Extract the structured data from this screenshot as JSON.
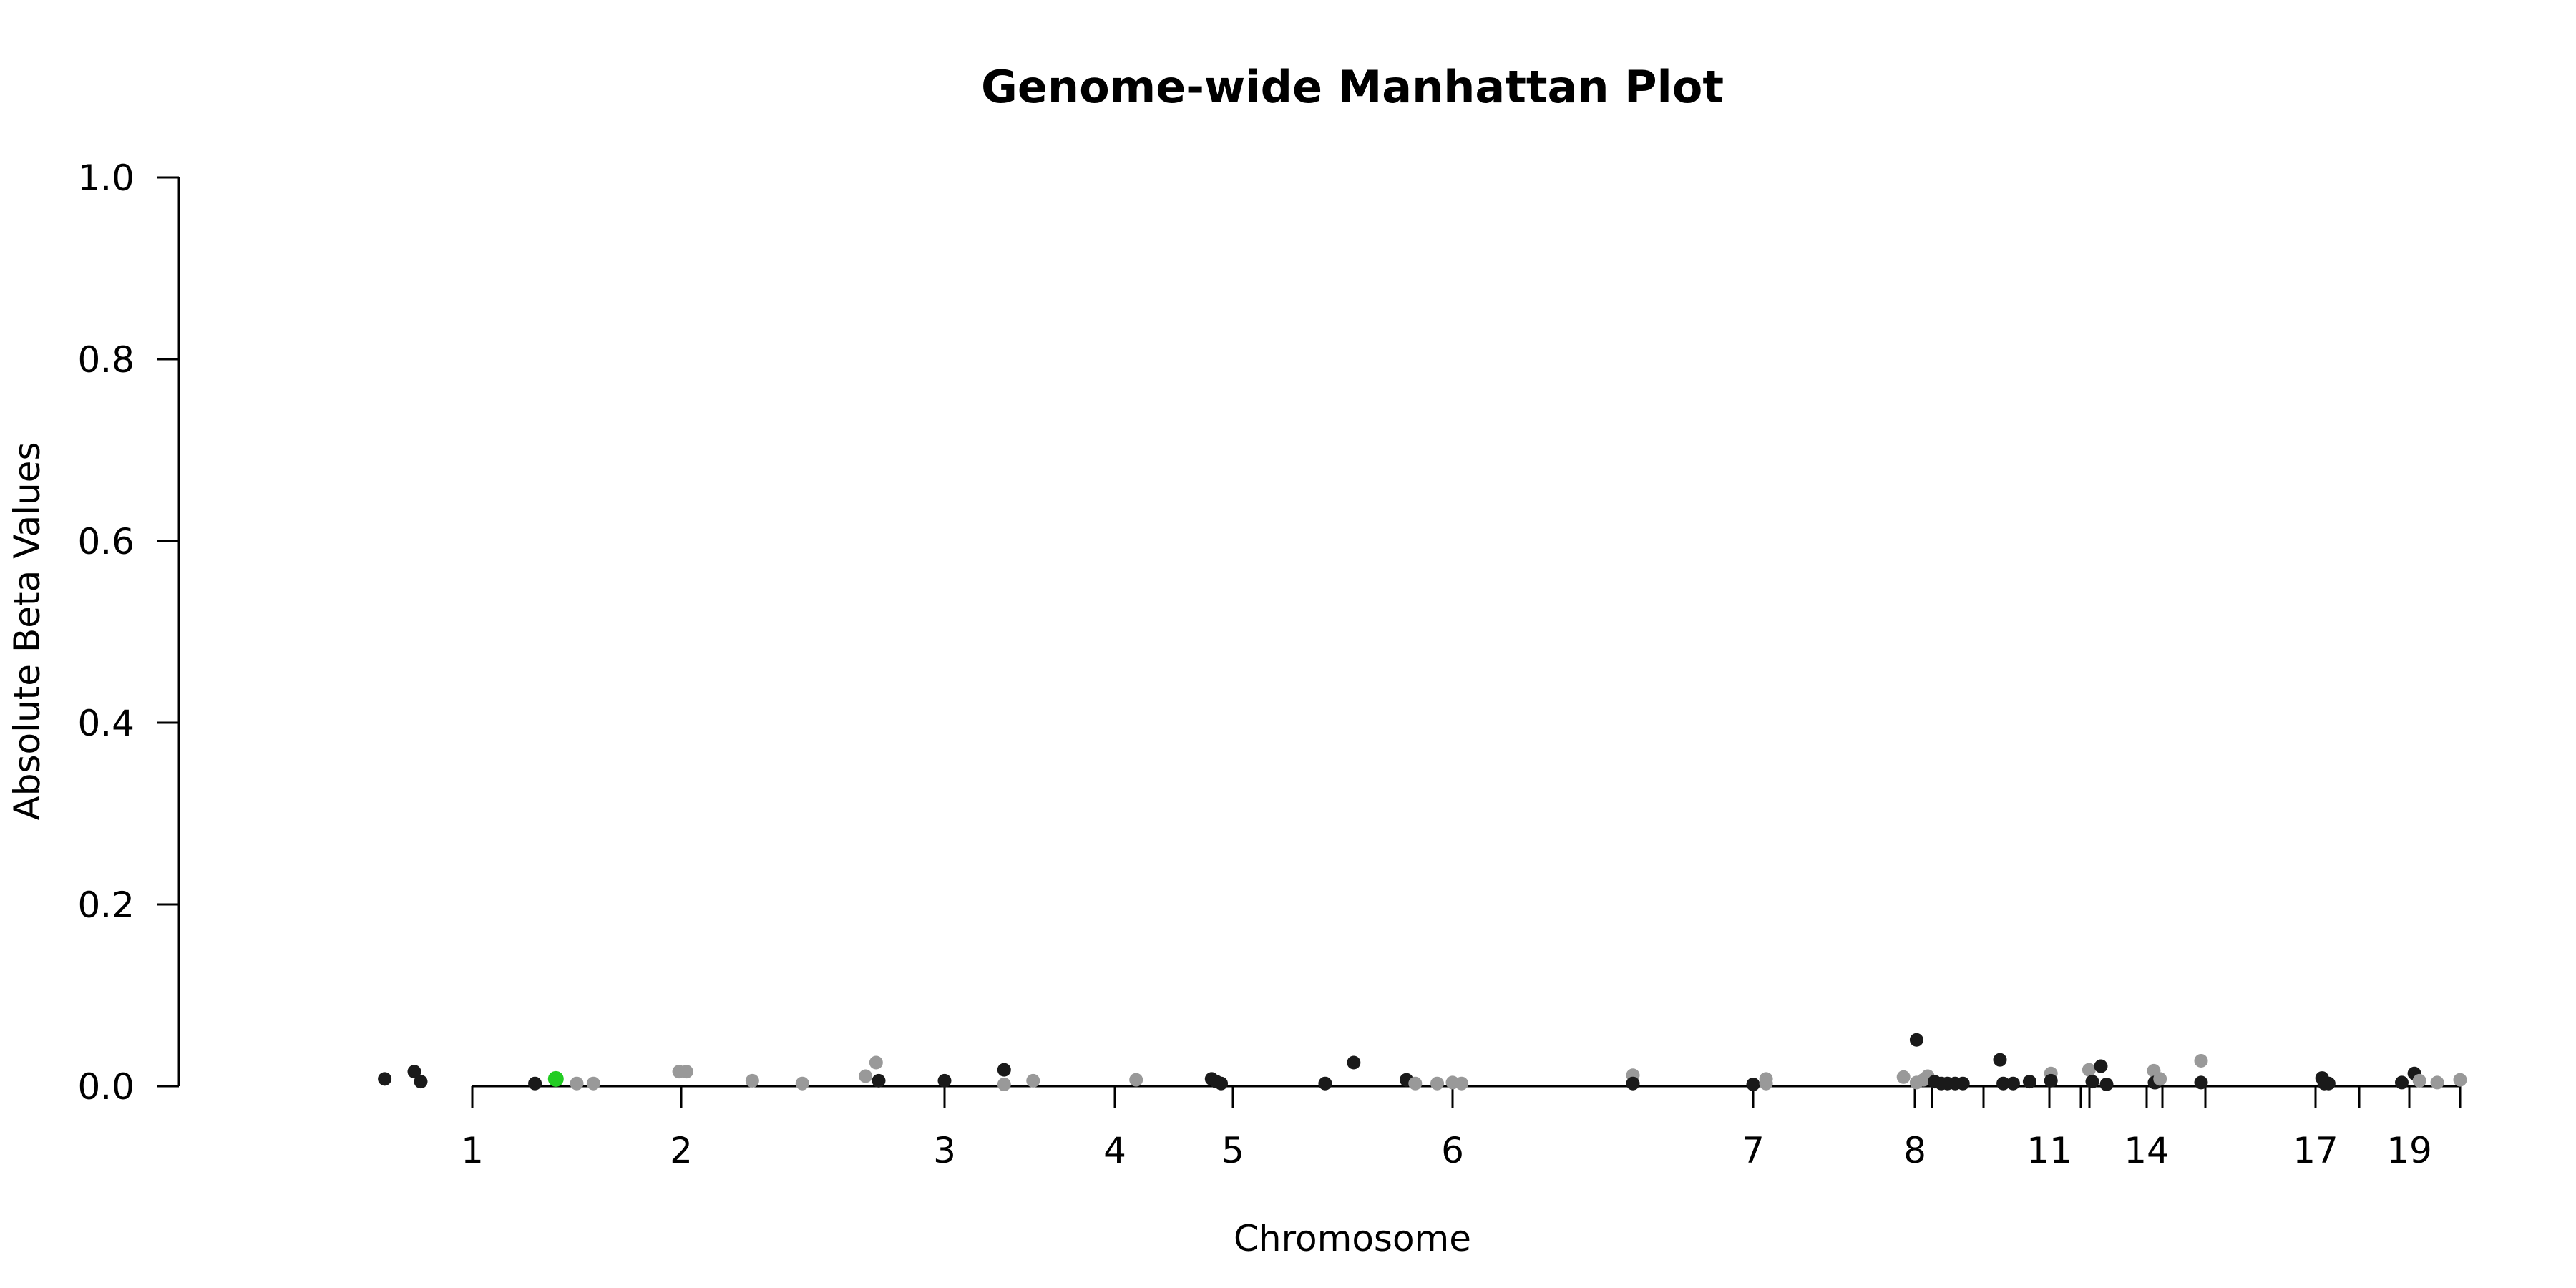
{
  "chart_data": {
    "type": "scatter",
    "title": "Genome-wide Manhattan Plot",
    "xlabel": "Chromosome",
    "ylabel": "Absolute Beta Values",
    "ylim": [
      0,
      1
    ],
    "yticks": [
      "0.0",
      "0.2",
      "0.4",
      "0.6",
      "0.8",
      "1.0"
    ],
    "grid": false,
    "x_tick_labels": [
      "1",
      "2",
      "3",
      "4",
      "5",
      "6",
      "7",
      "8",
      "11",
      "14",
      "17",
      "19"
    ],
    "colors": {
      "dark": "#1a1a1a",
      "light": "#999999",
      "highlight": "#22cc22"
    },
    "points": [
      {
        "x": 0.32,
        "y": 0.008,
        "c": "dark"
      },
      {
        "x": 0.55,
        "y": 0.016,
        "c": "dark"
      },
      {
        "x": 0.6,
        "y": 0.005,
        "c": "dark"
      },
      {
        "x": 1.3,
        "y": 0.003,
        "c": "dark"
      },
      {
        "x": 1.4,
        "y": 0.008,
        "c": "highlight"
      },
      {
        "x": 1.5,
        "y": 0.003,
        "c": "light"
      },
      {
        "x": 1.58,
        "y": 0.003,
        "c": "light"
      },
      {
        "x": 1.99,
        "y": 0.016,
        "c": "light"
      },
      {
        "x": 2.02,
        "y": 0.016,
        "c": "light"
      },
      {
        "x": 2.27,
        "y": 0.006,
        "c": "light"
      },
      {
        "x": 2.46,
        "y": 0.003,
        "c": "light"
      },
      {
        "x": 2.7,
        "y": 0.011,
        "c": "light"
      },
      {
        "x": 2.74,
        "y": 0.026,
        "c": "light"
      },
      {
        "x": 2.75,
        "y": 0.006,
        "c": "dark"
      },
      {
        "x": 3.0,
        "y": 0.006,
        "c": "dark"
      },
      {
        "x": 3.35,
        "y": 0.018,
        "c": "dark"
      },
      {
        "x": 3.35,
        "y": 0.002,
        "c": "light"
      },
      {
        "x": 3.52,
        "y": 0.006,
        "c": "light"
      },
      {
        "x": 4.18,
        "y": 0.007,
        "c": "light"
      },
      {
        "x": 4.82,
        "y": 0.008,
        "c": "dark"
      },
      {
        "x": 4.86,
        "y": 0.005,
        "c": "dark"
      },
      {
        "x": 4.9,
        "y": 0.003,
        "c": "dark"
      },
      {
        "x": 5.42,
        "y": 0.003,
        "c": "dark"
      },
      {
        "x": 5.55,
        "y": 0.026,
        "c": "dark"
      },
      {
        "x": 5.79,
        "y": 0.007,
        "c": "dark"
      },
      {
        "x": 5.83,
        "y": 0.003,
        "c": "light"
      },
      {
        "x": 5.93,
        "y": 0.003,
        "c": "light"
      },
      {
        "x": 6.0,
        "y": 0.004,
        "c": "light"
      },
      {
        "x": 6.03,
        "y": 0.003,
        "c": "light"
      },
      {
        "x": 6.6,
        "y": 0.012,
        "c": "light"
      },
      {
        "x": 6.6,
        "y": 0.003,
        "c": "dark"
      },
      {
        "x": 7.0,
        "y": 0.002,
        "c": "dark"
      },
      {
        "x": 7.08,
        "y": 0.008,
        "c": "light"
      },
      {
        "x": 7.08,
        "y": 0.003,
        "c": "light"
      },
      {
        "x": 7.93,
        "y": 0.01,
        "c": "light"
      },
      {
        "x": 8.1,
        "y": 0.051,
        "c": "dark"
      },
      {
        "x": 8.1,
        "y": 0.004,
        "c": "light"
      },
      {
        "x": 8.5,
        "y": 0.007,
        "c": "light"
      },
      {
        "x": 8.75,
        "y": 0.011,
        "c": "light"
      },
      {
        "x": 9.05,
        "y": 0.005,
        "c": "dark"
      },
      {
        "x": 9.18,
        "y": 0.003,
        "c": "dark"
      },
      {
        "x": 9.3,
        "y": 0.003,
        "c": "dark"
      },
      {
        "x": 9.45,
        "y": 0.003,
        "c": "dark"
      },
      {
        "x": 9.6,
        "y": 0.003,
        "c": "dark"
      },
      {
        "x": 10.25,
        "y": 0.029,
        "c": "dark"
      },
      {
        "x": 10.3,
        "y": 0.003,
        "c": "dark"
      },
      {
        "x": 10.45,
        "y": 0.003,
        "c": "dark"
      },
      {
        "x": 10.7,
        "y": 0.005,
        "c": "dark"
      },
      {
        "x": 11.05,
        "y": 0.014,
        "c": "light"
      },
      {
        "x": 11.05,
        "y": 0.006,
        "c": "dark"
      },
      {
        "x": 12.95,
        "y": 0.018,
        "c": "light"
      },
      {
        "x": 13.05,
        "y": 0.005,
        "c": "dark"
      },
      {
        "x": 13.2,
        "y": 0.022,
        "c": "dark"
      },
      {
        "x": 13.3,
        "y": 0.002,
        "c": "dark"
      },
      {
        "x": 14.45,
        "y": 0.017,
        "c": "light"
      },
      {
        "x": 14.5,
        "y": 0.004,
        "c": "dark"
      },
      {
        "x": 14.55,
        "y": 0.004,
        "c": "dark"
      },
      {
        "x": 14.85,
        "y": 0.008,
        "c": "light"
      },
      {
        "x": 15.9,
        "y": 0.028,
        "c": "light"
      },
      {
        "x": 15.9,
        "y": 0.004,
        "c": "dark"
      },
      {
        "x": 17.15,
        "y": 0.009,
        "c": "dark"
      },
      {
        "x": 17.2,
        "y": 0.003,
        "c": "dark"
      },
      {
        "x": 17.3,
        "y": 0.003,
        "c": "dark"
      },
      {
        "x": 18.85,
        "y": 0.004,
        "c": "dark"
      },
      {
        "x": 19.1,
        "y": 0.014,
        "c": "dark"
      },
      {
        "x": 19.2,
        "y": 0.006,
        "c": "light"
      },
      {
        "x": 19.55,
        "y": 0.004,
        "c": "light"
      },
      {
        "x": 20.05,
        "y": 0.007,
        "c": "light"
      }
    ]
  }
}
